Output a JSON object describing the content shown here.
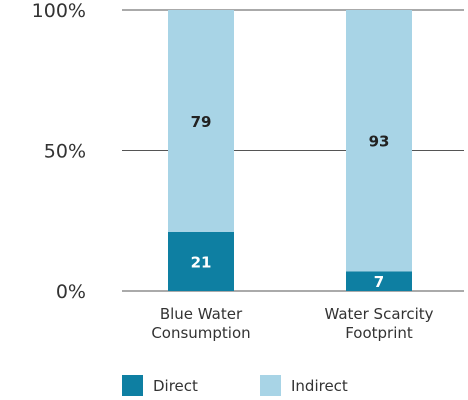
{
  "chart_data": {
    "type": "bar",
    "stacked": true,
    "title": "",
    "xlabel": "",
    "ylabel": "",
    "ylim": [
      0,
      100
    ],
    "yticks": [
      0,
      50,
      100
    ],
    "ytick_labels": [
      "0%",
      "50%",
      "100%"
    ],
    "grid": "horizontal at y ticks",
    "categories": [
      [
        "Blue Water",
        "Consumption"
      ],
      [
        "Water Scarcity",
        "Footprint"
      ]
    ],
    "series": [
      {
        "name": "Direct",
        "values": [
          21,
          7
        ],
        "color": "#0e7fa2",
        "label_color": "#ffffff"
      },
      {
        "name": "Indirect",
        "values": [
          79,
          93
        ],
        "color": "#a8d4e6",
        "label_color": "#222222"
      }
    ],
    "legend_position": "bottom-left"
  }
}
